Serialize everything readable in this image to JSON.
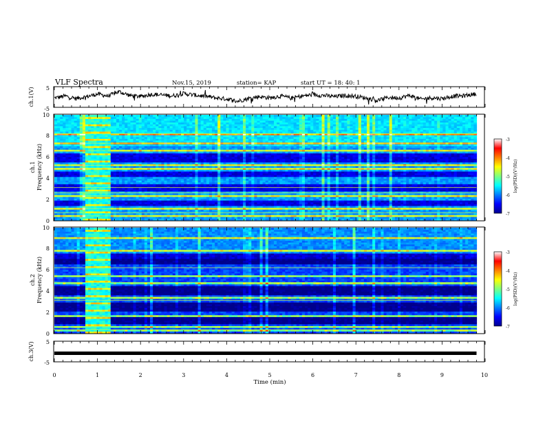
{
  "header": {
    "title": "VLF Spectra",
    "date": "Nov.15, 2019",
    "station": "station= KAP",
    "start": "start  UT =  18: 40: 1"
  },
  "chart_data": [
    {
      "type": "line",
      "panel": "ch1-waveform",
      "ylabel": "ch.1(V)",
      "xlim": [
        0,
        10
      ],
      "ylim": [
        -5,
        5
      ],
      "y_ticks": [
        "5",
        "-5"
      ],
      "series": [
        {
          "x": [
            0,
            0.25,
            0.5,
            0.75,
            1,
            1.25,
            1.5,
            1.75,
            2,
            2.25,
            2.5,
            2.75,
            3,
            3.25,
            3.5,
            3.75,
            4,
            4.25,
            4.5,
            4.75,
            5,
            5.25,
            5.5,
            5.75,
            6,
            6.25,
            6.5,
            6.75,
            7,
            7.25,
            7.5,
            7.75,
            8,
            8.25,
            8.5,
            8.75,
            9,
            9.25,
            9.5,
            9.75
          ],
          "y": [
            -0.5,
            0.5,
            -0.8,
            0.2,
            1.5,
            0.5,
            2.8,
            0.8,
            0.2,
            1.4,
            1.0,
            0.6,
            1.8,
            1.0,
            0.4,
            -0.5,
            -1.0,
            -2.2,
            -0.8,
            0.2,
            -0.5,
            0.5,
            -0.6,
            0.5,
            1.2,
            0.8,
            0.2,
            0.8,
            0.4,
            -0.6,
            -1.8,
            -0.2,
            -0.5,
            0.8,
            -1.2,
            -0.4,
            -0.8,
            0.4,
            0.6,
            1.5
          ]
        }
      ]
    },
    {
      "type": "heatmap",
      "panel": "ch1-spectrogram",
      "ylabel": "ch.1",
      "ylabel2": "Frequency  (kHz)",
      "xlim": [
        0,
        9.8
      ],
      "ylim": [
        0,
        10
      ],
      "y_ticks": [
        "0",
        "2",
        "4",
        "6",
        "8",
        "10"
      ],
      "colorbar": {
        "label": "log(PSD)(V²/Hz)",
        "range": [
          -7,
          -3
        ],
        "ticks": [
          "-3",
          "-4",
          "-5",
          "-6",
          "-7"
        ]
      },
      "bright_lines_khz": [
        0.4,
        0.7,
        1.1,
        2.3,
        2.6,
        3.1,
        4.9,
        5.2,
        6.6,
        7.3,
        8.2
      ],
      "dark_bands_khz": [
        [
          2.8,
          3.5
        ],
        [
          4.2,
          4.6
        ],
        [
          5.5,
          6.4
        ],
        [
          1.4,
          1.9
        ]
      ],
      "burst_interval_min": [
        0.7,
        1.3
      ]
    },
    {
      "type": "heatmap",
      "panel": "ch2-spectrogram",
      "ylabel": "ch.2",
      "ylabel2": "Frequency  (kHz)",
      "xlim": [
        0,
        9.8
      ],
      "ylim": [
        0,
        10
      ],
      "y_ticks": [
        "0",
        "2",
        "4",
        "6",
        "8",
        "10"
      ],
      "colorbar": {
        "label": "log(PSD)(V²/Hz)",
        "range": [
          -7,
          -3
        ],
        "ticks": [
          "-3",
          "-4",
          "-5",
          "-6",
          "-7"
        ]
      },
      "bright_lines_khz": [
        0.3,
        0.6,
        1.6,
        3.1,
        3.4,
        4.8,
        5.4,
        6.2,
        7.8,
        9.0
      ],
      "dark_bands_khz": [
        [
          3.6,
          4.4
        ],
        [
          2.0,
          3.0
        ],
        [
          0.9,
          1.5
        ],
        [
          6.5,
          7.5
        ]
      ],
      "burst_interval_min": [
        0.7,
        1.3
      ]
    },
    {
      "type": "line",
      "panel": "ch3-waveform",
      "ylabel": "ch.3(V)",
      "xlim": [
        0,
        10
      ],
      "ylim": [
        -5,
        5
      ],
      "y_ticks": [
        "5",
        "-5"
      ],
      "series": [
        {
          "x": [
            0,
            9.8
          ],
          "y": [
            -0.9,
            -0.9
          ]
        }
      ]
    }
  ],
  "x_axis": {
    "label": "Time  (min)",
    "ticks": [
      "0",
      "1",
      "2",
      "3",
      "4",
      "5",
      "6",
      "7",
      "8",
      "9",
      "10"
    ]
  }
}
